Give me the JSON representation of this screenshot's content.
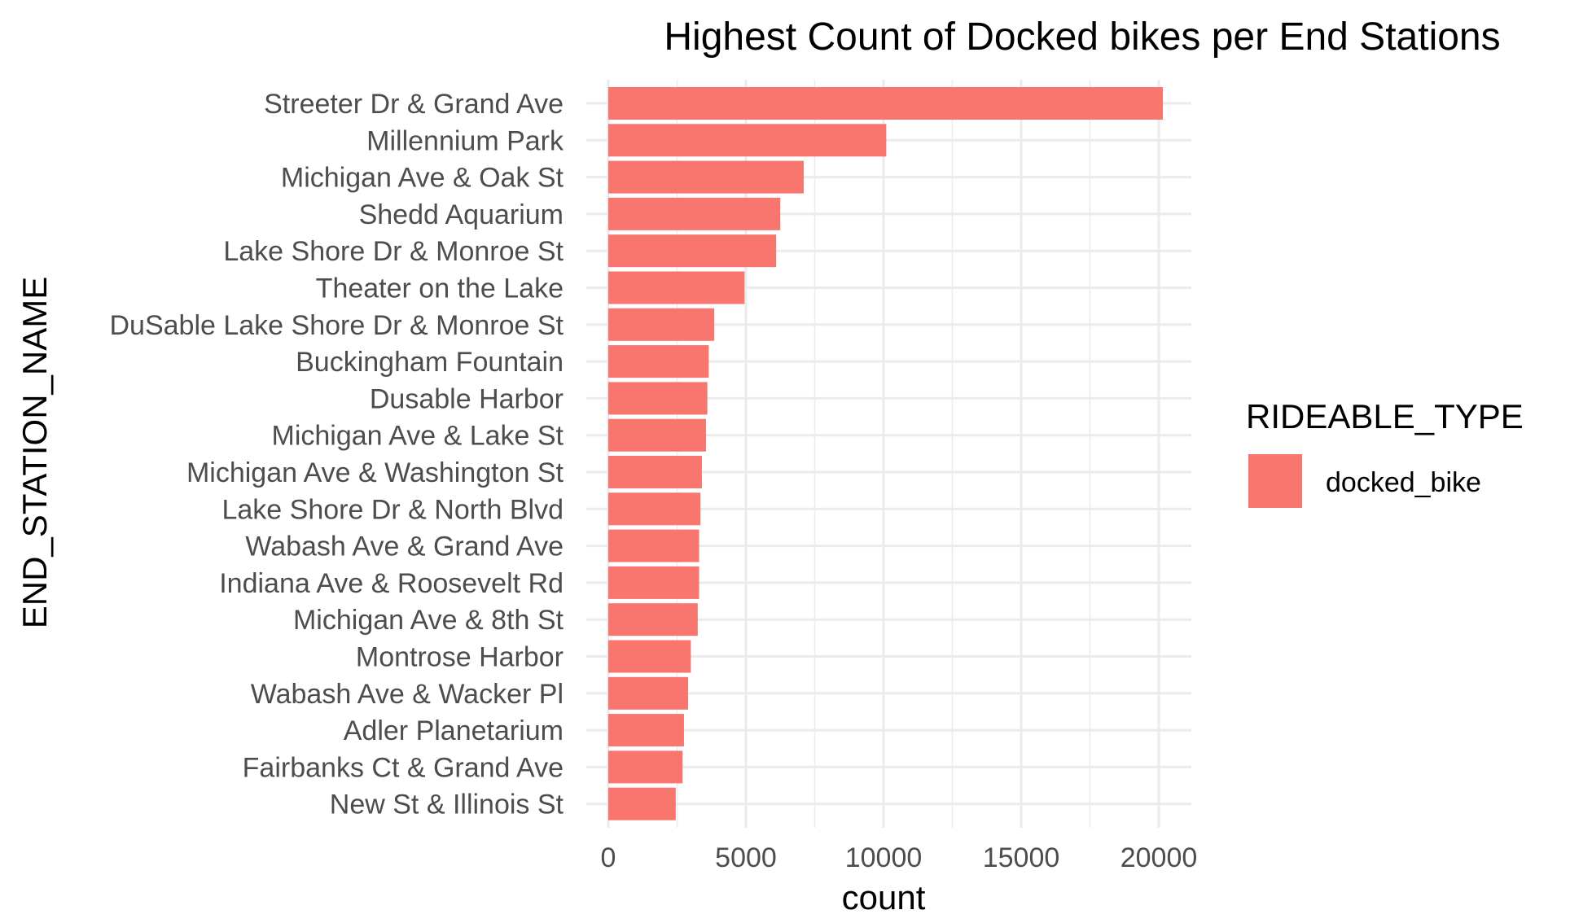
{
  "chart_data": {
    "type": "bar",
    "orientation": "horizontal",
    "title": "Highest Count of Docked bikes per End Stations",
    "xlabel": "count",
    "ylabel": "END_STATION_NAME",
    "xlim": [
      0,
      21000
    ],
    "x_ticks": [
      0,
      5000,
      10000,
      15000,
      20000
    ],
    "x_tick_labels": [
      "0",
      "5000",
      "10000",
      "15000",
      "20000"
    ],
    "grid": true,
    "legend": {
      "title": "RIDEABLE_TYPE",
      "placement": "right",
      "entries": [
        {
          "label": "docked_bike",
          "color": "#F8766D"
        }
      ]
    },
    "categories": [
      "Streeter Dr & Grand Ave",
      "Millennium Park",
      "Michigan Ave & Oak St",
      "Shedd Aquarium",
      "Lake Shore Dr & Monroe St",
      "Theater on the Lake",
      "DuSable Lake Shore Dr & Monroe St",
      "Buckingham Fountain",
      "Dusable Harbor",
      "Michigan Ave & Lake St",
      "Michigan Ave & Washington St",
      "Lake Shore Dr & North Blvd",
      "Wabash Ave & Grand Ave",
      "Indiana Ave & Roosevelt Rd",
      "Michigan Ave & 8th St",
      "Montrose Harbor",
      "Wabash Ave & Wacker Pl",
      "Adler Planetarium",
      "Fairbanks Ct & Grand Ave",
      "New St & Illinois St"
    ],
    "series": [
      {
        "values": [
          20150,
          10100,
          7100,
          6250,
          6100,
          4950,
          3850,
          3650,
          3600,
          3550,
          3400,
          3350,
          3300,
          3300,
          3250,
          3000,
          2900,
          2750,
          2700,
          2450
        ],
        "color": "#F8766D"
      }
    ]
  }
}
